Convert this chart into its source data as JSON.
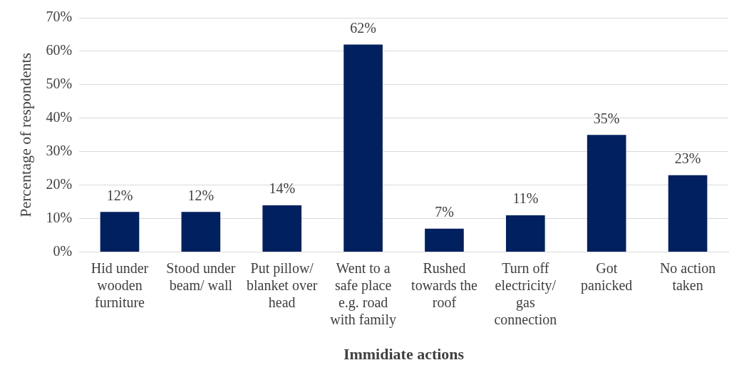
{
  "chart_data": {
    "type": "bar",
    "xlabel": "Immidiate actions",
    "ylabel": "Percentage of respondents",
    "categories": [
      "Hid under wooden furniture",
      "Stood under beam/ wall",
      "Put pillow/ blanket over head",
      "Went to a safe place e.g. road with family",
      "Rushed towards the roof",
      "Turn off electricity/ gas connection",
      "Got panicked",
      "No action taken"
    ],
    "values": [
      12,
      12,
      14,
      62,
      7,
      11,
      35,
      23
    ],
    "value_labels": [
      "12%",
      "12%",
      "14%",
      "62%",
      "7%",
      "11%",
      "35%",
      "23%"
    ],
    "color": "#002060",
    "ylim": [
      0,
      70
    ],
    "yticks": [
      {
        "value": 0,
        "label": "0%"
      },
      {
        "value": 10,
        "label": "10%"
      },
      {
        "value": 20,
        "label": "20%"
      },
      {
        "value": 30,
        "label": "30%"
      },
      {
        "value": 40,
        "label": "40%"
      },
      {
        "value": 50,
        "label": "50%"
      },
      {
        "value": 60,
        "label": "60%"
      },
      {
        "value": 70,
        "label": "70%"
      }
    ],
    "grid": "y",
    "legend": false
  }
}
